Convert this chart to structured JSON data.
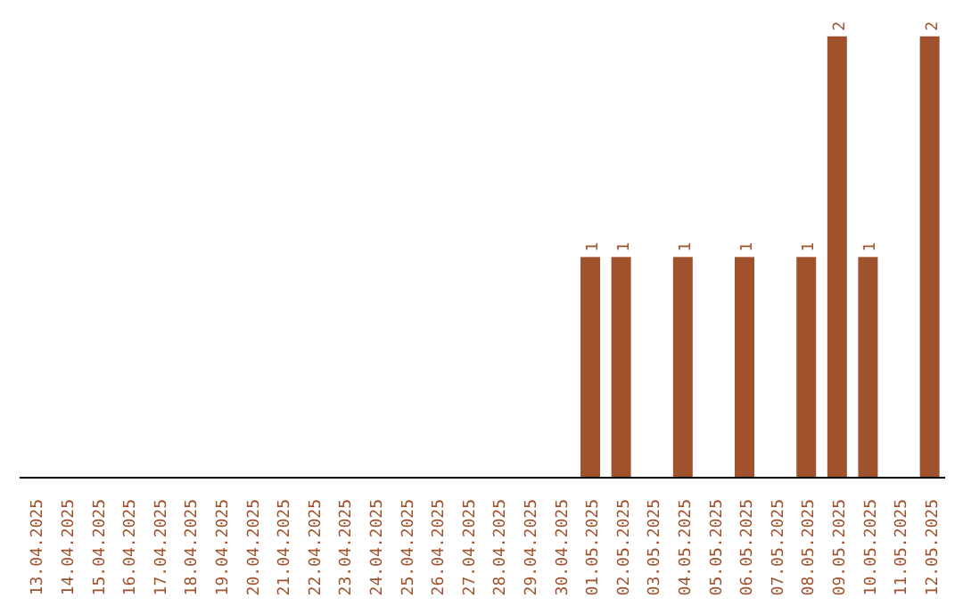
{
  "chart_data": {
    "type": "bar",
    "categories": [
      "13.04.2025",
      "14.04.2025",
      "15.04.2025",
      "16.04.2025",
      "17.04.2025",
      "18.04.2025",
      "19.04.2025",
      "20.04.2025",
      "21.04.2025",
      "22.04.2025",
      "23.04.2025",
      "24.04.2025",
      "25.04.2025",
      "26.04.2025",
      "27.04.2025",
      "28.04.2025",
      "29.04.2025",
      "30.04.2025",
      "01.05.2025",
      "02.05.2025",
      "03.05.2025",
      "04.05.2025",
      "05.05.2025",
      "06.05.2025",
      "07.05.2025",
      "08.05.2025",
      "09.05.2025",
      "10.05.2025",
      "11.05.2025",
      "12.05.2025"
    ],
    "values": [
      null,
      null,
      null,
      null,
      null,
      null,
      null,
      null,
      null,
      null,
      null,
      null,
      null,
      null,
      null,
      null,
      null,
      null,
      1,
      1,
      null,
      1,
      null,
      1,
      null,
      1,
      2,
      1,
      null,
      2
    ],
    "data_labels": true,
    "color": "#a0522d",
    "grid": false,
    "legend": false
  }
}
